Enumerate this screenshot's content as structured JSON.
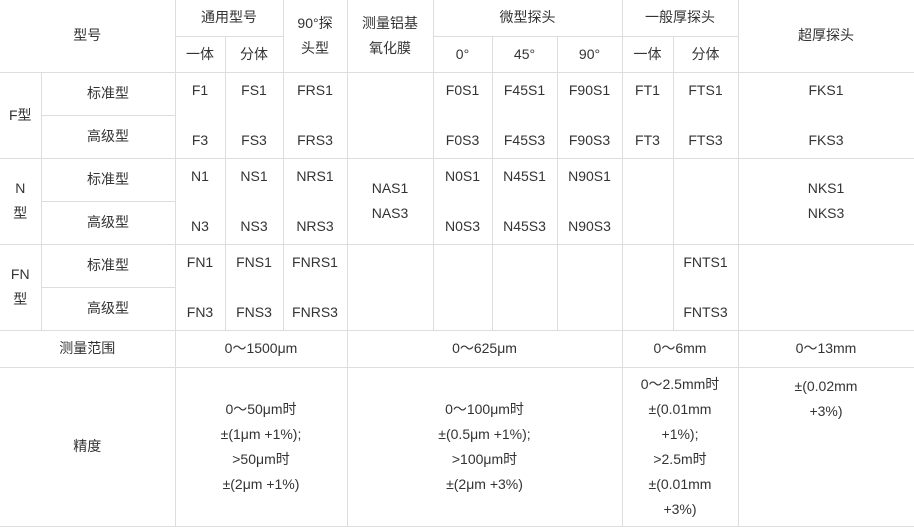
{
  "header": {
    "model": "型号",
    "general": "通用型号",
    "general_sub": [
      "一体",
      "分体"
    ],
    "probe90": [
      "90°探",
      "头型"
    ],
    "alumina": [
      "测量铝基",
      "氧化膜"
    ],
    "micro": "微型探头",
    "micro_sub": [
      "0°",
      "45°",
      "90°"
    ],
    "normal_thick": "一般厚探头",
    "normal_thick_sub": [
      "一体",
      "分体"
    ],
    "ultra_thick": "超厚探头"
  },
  "groups": [
    {
      "name": "F型",
      "std": "标准型",
      "adv": "高级型",
      "cells": [
        [
          "F1",
          "F3"
        ],
        [
          "FS1",
          "FS3"
        ],
        [
          "FRS1",
          "FRS3"
        ],
        [],
        [
          "F0S1",
          "F0S3"
        ],
        [
          "F45S1",
          "F45S3"
        ],
        [
          "F90S1",
          "F90S3"
        ],
        [
          "FT1",
          "FT3"
        ],
        [
          "FTS1",
          "FTS3"
        ],
        [
          "FKS1",
          "FKS3"
        ]
      ]
    },
    {
      "name": [
        "N",
        "型"
      ],
      "std": "标准型",
      "adv": "高级型",
      "cells": [
        [
          "N1",
          "N3"
        ],
        [
          "NS1",
          "NS3"
        ],
        [
          "NRS1",
          "NRS3"
        ],
        [
          "NAS1",
          "NAS3"
        ],
        [
          "N0S1",
          "N0S3"
        ],
        [
          "N45S1",
          "N45S3"
        ],
        [
          "N90S1",
          "N90S3"
        ],
        [],
        [],
        [
          "NKS1",
          "NKS3"
        ]
      ]
    },
    {
      "name": [
        "FN",
        "型"
      ],
      "std": "标准型",
      "adv": "高级型",
      "cells": [
        [
          "FN1",
          "FN3"
        ],
        [
          "FNS1",
          "FNS3"
        ],
        [
          "FNRS1",
          "FNRS3"
        ],
        [],
        [],
        [],
        [],
        [],
        [
          "FNTS1",
          "FNTS3"
        ],
        []
      ]
    }
  ],
  "range": {
    "label": "测量范围",
    "values": [
      "0～1500μm",
      "0～625μm",
      "0～6mm",
      "0～13mm"
    ]
  },
  "precision": {
    "label": "精度",
    "values": [
      [
        "0～50μm时",
        "±(1μm +1%);",
        ">50μm时",
        "±(2μm +1%)"
      ],
      [
        "0～100μm时",
        "±(0.5μm +1%);",
        ">100μm时",
        "±(2μm +3%)"
      ],
      [
        "0～2.5mm时",
        "±(0.01mm",
        "+1%);",
        ">2.5m时",
        "±(0.01mm",
        "+3%)"
      ],
      [
        "±(0.02mm",
        "+3%)"
      ]
    ]
  }
}
